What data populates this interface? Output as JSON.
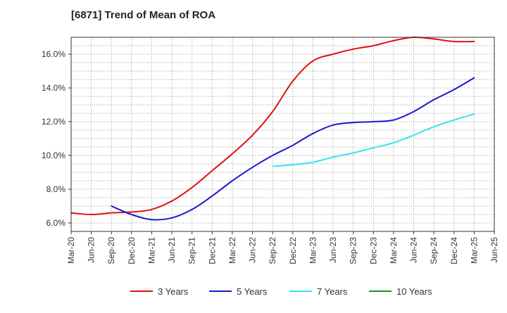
{
  "chart_data": {
    "type": "line",
    "title": "[6871]  Trend of Mean of ROA",
    "xlabel": "",
    "ylabel": "",
    "x_ticks": [
      "Mar-20",
      "Jun-20",
      "Sep-20",
      "Dec-20",
      "Mar-21",
      "Jun-21",
      "Sep-21",
      "Dec-21",
      "Mar-22",
      "Jun-22",
      "Sep-22",
      "Dec-22",
      "Mar-23",
      "Jun-23",
      "Sep-23",
      "Dec-23",
      "Mar-24",
      "Jun-24",
      "Sep-24",
      "Dec-24",
      "Mar-25",
      "Jun-25"
    ],
    "y_ticks": [
      "6.0%",
      "8.0%",
      "10.0%",
      "12.0%",
      "14.0%",
      "16.0%"
    ],
    "y_tick_values": [
      6,
      8,
      10,
      12,
      14,
      16
    ],
    "ylim": [
      5.5,
      17.0
    ],
    "grid": true,
    "legend_position": "bottom",
    "series": [
      {
        "name": "3 Years",
        "color": "#dd1111",
        "x": [
          "Mar-20",
          "Jun-20",
          "Sep-20",
          "Dec-20",
          "Mar-21",
          "Jun-21",
          "Sep-21",
          "Dec-21",
          "Mar-22",
          "Jun-22",
          "Sep-22",
          "Dec-22",
          "Mar-23",
          "Jun-23",
          "Sep-23",
          "Dec-23",
          "Mar-24",
          "Jun-24",
          "Sep-24",
          "Dec-24",
          "Mar-25"
        ],
        "values": [
          6.6,
          6.5,
          6.6,
          6.65,
          6.8,
          7.3,
          8.1,
          9.1,
          10.1,
          11.2,
          12.6,
          14.4,
          15.6,
          16.0,
          16.3,
          16.5,
          16.8,
          17.0,
          16.9,
          16.75,
          16.75
        ]
      },
      {
        "name": "5 Years",
        "color": "#1a1acc",
        "x": [
          "Sep-20",
          "Dec-20",
          "Mar-21",
          "Jun-21",
          "Sep-21",
          "Dec-21",
          "Mar-22",
          "Jun-22",
          "Sep-22",
          "Dec-22",
          "Mar-23",
          "Jun-23",
          "Sep-23",
          "Dec-23",
          "Mar-24",
          "Jun-24",
          "Sep-24",
          "Dec-24",
          "Mar-25"
        ],
        "values": [
          7.0,
          6.5,
          6.2,
          6.3,
          6.8,
          7.6,
          8.5,
          9.3,
          10.0,
          10.6,
          11.3,
          11.8,
          11.95,
          12.0,
          12.1,
          12.6,
          13.3,
          13.9,
          14.6
        ]
      },
      {
        "name": "7 Years",
        "color": "#33e5f0",
        "x": [
          "Sep-22",
          "Dec-22",
          "Mar-23",
          "Jun-23",
          "Sep-23",
          "Dec-23",
          "Mar-24",
          "Jun-24",
          "Sep-24",
          "Dec-24",
          "Mar-25"
        ],
        "values": [
          9.35,
          9.45,
          9.6,
          9.9,
          10.15,
          10.45,
          10.75,
          11.2,
          11.7,
          12.1,
          12.45
        ]
      },
      {
        "name": "10 Years",
        "color": "#228b22",
        "x": [],
        "values": []
      }
    ]
  }
}
